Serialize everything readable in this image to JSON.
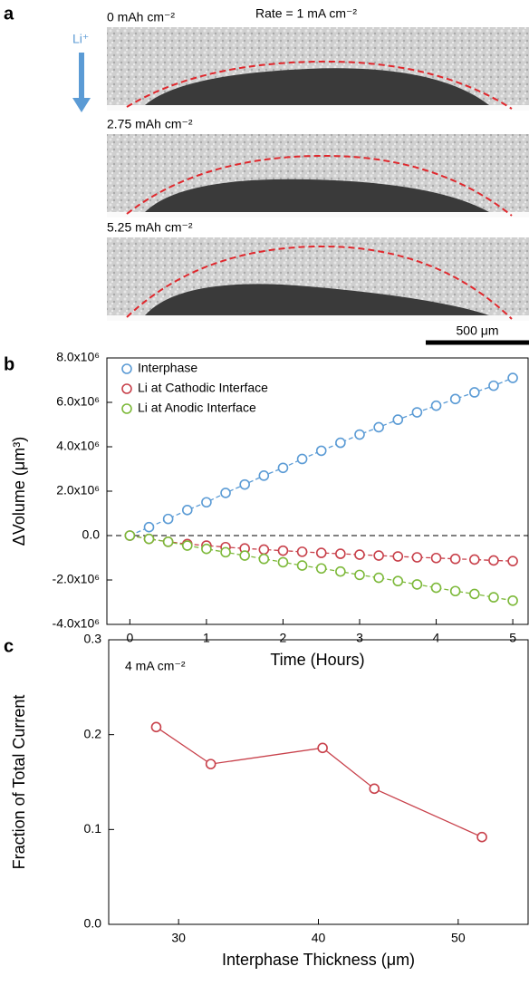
{
  "panel_a": {
    "label": "a",
    "rate": "Rate  = 1 mA cm⁻²",
    "ion": "Li⁺",
    "images": [
      {
        "caption": "0 mAh cm⁻²"
      },
      {
        "caption": "2.75 mAh cm⁻²"
      },
      {
        "caption": "5.25 mAh cm⁻²"
      }
    ],
    "scale_bar": "500 μm"
  },
  "chart_data": [
    {
      "type": "line",
      "panel_label": "b",
      "xlabel": "Time (Hours)",
      "ylabel": "ΔVolume (μm³)",
      "x": [
        0,
        0.25,
        0.5,
        0.75,
        1,
        1.25,
        1.5,
        1.75,
        2,
        2.25,
        2.5,
        2.75,
        3,
        3.25,
        3.5,
        3.75,
        4,
        4.25,
        4.5,
        4.75,
        5
      ],
      "series": [
        {
          "name": "Interphase",
          "color": "#5b9bd5",
          "values": [
            0,
            380000,
            750000,
            1150000,
            1500000,
            1920000,
            2300000,
            2700000,
            3050000,
            3450000,
            3820000,
            4180000,
            4550000,
            4880000,
            5220000,
            5550000,
            5850000,
            6150000,
            6450000,
            6750000,
            7100000
          ]
        },
        {
          "name": "Li at Cathodic Interface",
          "color": "#c8414b",
          "values": [
            0,
            -150000,
            -280000,
            -380000,
            -450000,
            -520000,
            -580000,
            -630000,
            -680000,
            -730000,
            -780000,
            -820000,
            -860000,
            -900000,
            -940000,
            -980000,
            -1010000,
            -1050000,
            -1080000,
            -1120000,
            -1150000
          ]
        },
        {
          "name": "Li at Anodic Interface",
          "color": "#7db93a",
          "values": [
            0,
            -150000,
            -280000,
            -450000,
            -600000,
            -750000,
            -900000,
            -1050000,
            -1200000,
            -1350000,
            -1480000,
            -1620000,
            -1770000,
            -1900000,
            -2050000,
            -2200000,
            -2350000,
            -2500000,
            -2630000,
            -2780000,
            -2930000
          ]
        }
      ],
      "xlim": [
        -0.3,
        5.2
      ],
      "xticks": [
        0,
        1,
        2,
        3,
        4,
        5
      ],
      "ylim": [
        -4000000,
        8000000
      ],
      "yticks": [
        {
          "value": -4000000,
          "label": "-4.0x10⁶"
        },
        {
          "value": -2000000,
          "label": "-2.0x10⁶"
        },
        {
          "value": 0,
          "label": "0.0"
        },
        {
          "value": 2000000,
          "label": "2.0x10⁶"
        },
        {
          "value": 4000000,
          "label": "4.0x10⁶"
        },
        {
          "value": 6000000,
          "label": "6.0x10⁶"
        },
        {
          "value": 8000000,
          "label": "8.0x10⁶"
        }
      ],
      "line_style": "dashed",
      "zero_line": true,
      "legend": "upper left"
    },
    {
      "type": "line",
      "panel_label": "c",
      "xlabel": "Interphase Thickness (μm)",
      "ylabel": "Fraction of Total Current",
      "annotation": "4 mA cm⁻²",
      "x": [
        28.4,
        32.3,
        40.3,
        44.0,
        51.7
      ],
      "series": [
        {
          "color": "#c8414b",
          "values": [
            0.208,
            0.169,
            0.186,
            0.143,
            0.092
          ]
        }
      ],
      "xlim": [
        25,
        55
      ],
      "xticks": [
        30,
        40,
        50
      ],
      "ylim": [
        0,
        0.3
      ],
      "yticks": [
        {
          "value": 0,
          "label": "0.0"
        },
        {
          "value": 0.1,
          "label": "0.1"
        },
        {
          "value": 0.2,
          "label": "0.2"
        },
        {
          "value": 0.3,
          "label": "0.3"
        }
      ],
      "line_style": "solid",
      "zero_line": false
    }
  ]
}
